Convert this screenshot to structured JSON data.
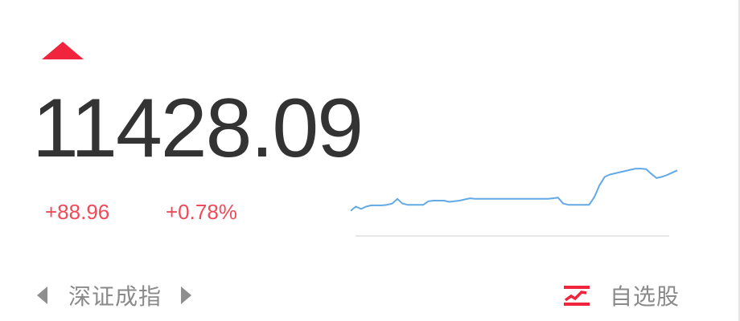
{
  "colors": {
    "up": "#f0243c",
    "up_text": "#ee4b5a",
    "sparkline": "#62a9e6",
    "baseline": "#e8e8e8",
    "muted": "#8a8a8a"
  },
  "quote": {
    "direction": "up",
    "price": "11428.09",
    "change": "+88.96",
    "change_pct": "+0.78%"
  },
  "index_switch": {
    "prev_icon": "caret-left-icon",
    "name": "深证成指",
    "next_icon": "caret-right-icon"
  },
  "watchlist": {
    "icon": "trend-up-icon",
    "label": "自选股"
  },
  "chart_data": {
    "type": "line",
    "title": "",
    "xlabel": "",
    "ylabel": "",
    "grid": false,
    "legend": "none",
    "ylim": [
      0,
      100
    ],
    "series": [
      {
        "values": [
          10,
          17,
          13,
          17,
          19,
          19,
          19,
          20,
          22,
          30,
          22,
          20,
          20,
          20,
          20,
          26,
          27,
          27,
          27,
          25,
          26,
          27,
          29,
          31,
          30,
          30,
          30,
          30,
          30,
          30,
          30,
          30,
          30,
          30,
          30,
          30,
          30,
          30,
          30,
          31,
          32,
          22,
          20,
          20,
          20,
          20,
          20,
          33,
          53,
          67,
          71,
          73,
          75,
          77,
          79,
          81,
          81,
          80,
          72,
          65,
          67,
          70,
          74,
          78
        ]
      }
    ]
  }
}
